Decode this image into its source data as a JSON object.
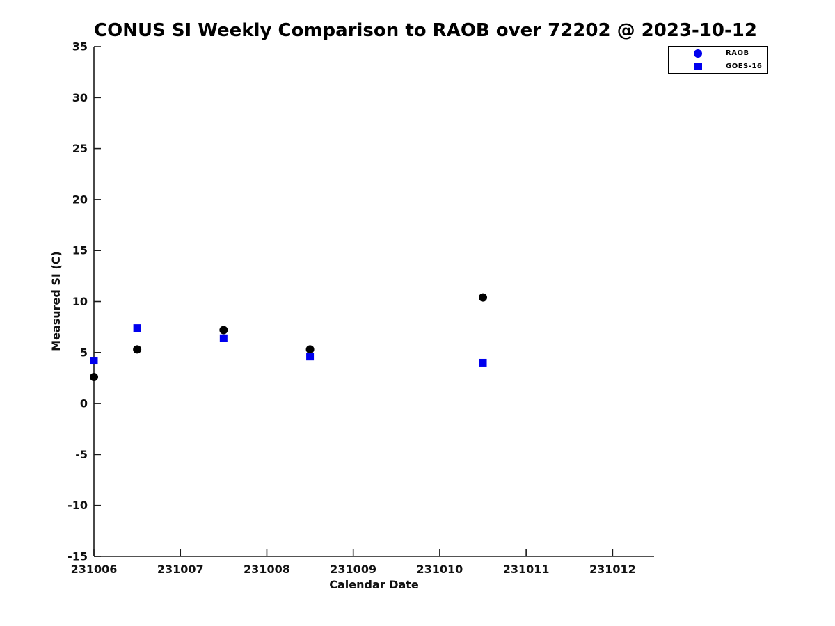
{
  "chart_data": {
    "type": "scatter",
    "title": "CONUS SI Weekly Comparison to RAOB over 72202 @ 2023-10-12",
    "xlabel": "Calendar Date",
    "ylabel": "Measured SI (C)",
    "xlim": [
      231006,
      231012.48
    ],
    "ylim": [
      -15,
      35
    ],
    "x_ticks": [
      231006,
      231007,
      231008,
      231009,
      231010,
      231011,
      231012
    ],
    "y_ticks": [
      -15,
      -10,
      -5,
      0,
      5,
      10,
      15,
      20,
      25,
      30,
      35
    ],
    "grid": false,
    "axis_color": "#1a1a1a",
    "legend": {
      "position": "top-right-outside-axes",
      "entries": [
        {
          "label": "RAOB",
          "marker": "circle",
          "color": "#0000ee"
        },
        {
          "label": "GOES-16",
          "marker": "square",
          "color": "#0000ee"
        }
      ]
    },
    "series": [
      {
        "name": "RAOB",
        "marker": "circle",
        "marker_color": "#000000",
        "points": [
          [
            231006,
            2.6
          ],
          [
            231006.5,
            5.3
          ],
          [
            231007.5,
            7.2
          ],
          [
            231008.5,
            5.3
          ],
          [
            231010.5,
            10.4
          ]
        ]
      },
      {
        "name": "GOES-16",
        "marker": "square",
        "marker_color": "#0000ee",
        "points": [
          [
            231006,
            4.2
          ],
          [
            231006.5,
            7.4
          ],
          [
            231007.5,
            6.4
          ],
          [
            231008.5,
            4.6
          ],
          [
            231010.5,
            4.0
          ]
        ]
      }
    ]
  }
}
